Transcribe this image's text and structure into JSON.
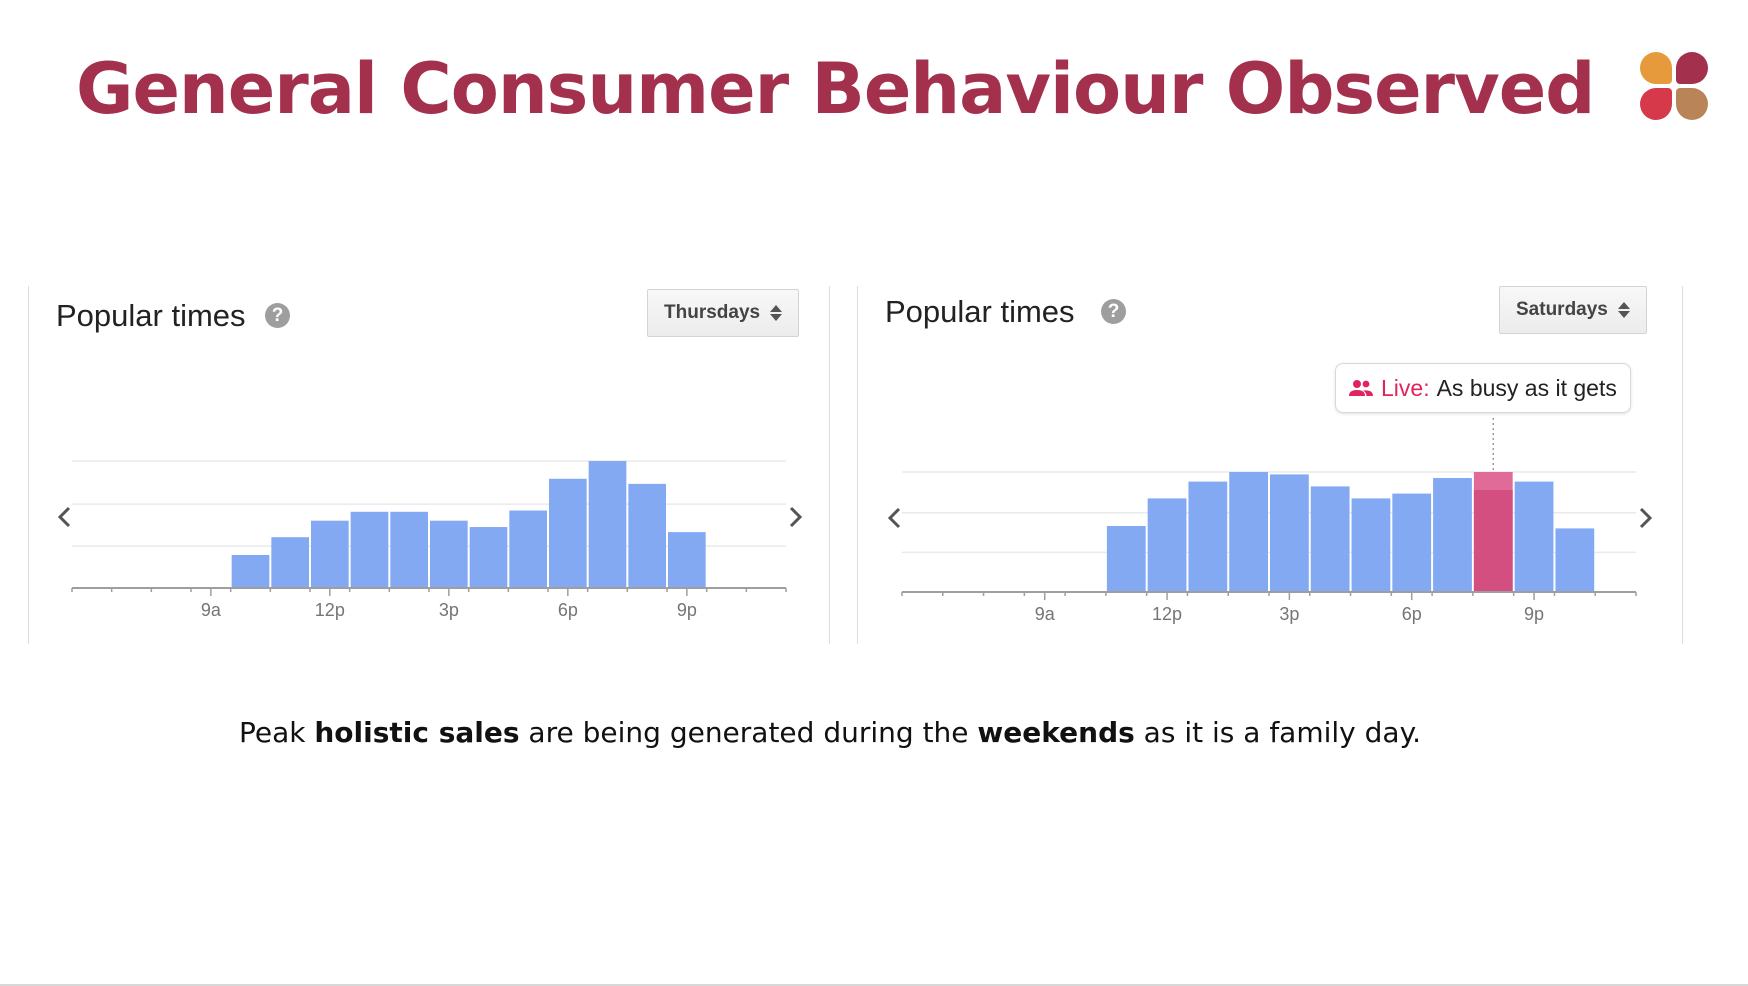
{
  "slide": {
    "title": "General Consumer Behaviour Observed",
    "caption": {
      "p1": "Peak ",
      "b1": "holistic sales",
      "p2": " are being generated during the ",
      "b2": "weekends",
      "p3": " as it is a family day."
    }
  },
  "logo": {
    "colors": [
      "#e79a3c",
      "#a3304d",
      "#d63a4a",
      "#b98558"
    ]
  },
  "colors": {
    "title": "#a3304d",
    "bar": "#82a9f2",
    "live_bar": "#d24f7f",
    "live_text": "#e0245e"
  },
  "left_panel": {
    "title": "Popular times",
    "help_icon": "?",
    "day_selector": "Thursdays",
    "nav": {
      "prev": "chevron-left-icon",
      "next": "chevron-right-icon"
    }
  },
  "right_panel": {
    "title": "Popular times",
    "help_icon": "?",
    "day_selector": "Saturdays",
    "nav": {
      "prev": "chevron-left-icon",
      "next": "chevron-right-icon"
    },
    "live": {
      "icon": "people-icon",
      "label": "Live:",
      "text": "As busy as it gets"
    }
  },
  "chart_data": [
    {
      "type": "bar",
      "title": "Popular times",
      "subtitle": "Thursdays",
      "x_hours": [
        6,
        7,
        8,
        9,
        10,
        11,
        12,
        13,
        14,
        15,
        16,
        17,
        18,
        19,
        20,
        21,
        22,
        23
      ],
      "values": [
        0,
        0,
        0,
        0,
        26,
        40,
        53,
        60,
        60,
        53,
        48,
        61,
        86,
        100,
        82,
        44,
        0,
        0
      ],
      "tick_labels": [
        "9a",
        "12p",
        "3p",
        "6p",
        "9p"
      ],
      "tick_hours": [
        9,
        12,
        15,
        18,
        21
      ],
      "ylim": [
        0,
        100
      ],
      "grid": true
    },
    {
      "type": "bar",
      "title": "Popular times",
      "subtitle": "Saturdays",
      "x_hours": [
        6,
        7,
        8,
        9,
        10,
        11,
        12,
        13,
        14,
        15,
        16,
        17,
        18,
        19,
        20,
        21,
        22,
        23
      ],
      "values": [
        0,
        0,
        0,
        0,
        0,
        55,
        78,
        92,
        100,
        98,
        88,
        78,
        82,
        95,
        100,
        92,
        53,
        0
      ],
      "live": {
        "hour": 20,
        "value": 85
      },
      "tick_labels": [
        "9a",
        "12p",
        "3p",
        "6p",
        "9p"
      ],
      "tick_hours": [
        9,
        12,
        15,
        18,
        21
      ],
      "ylim": [
        0,
        100
      ],
      "grid": true
    }
  ]
}
